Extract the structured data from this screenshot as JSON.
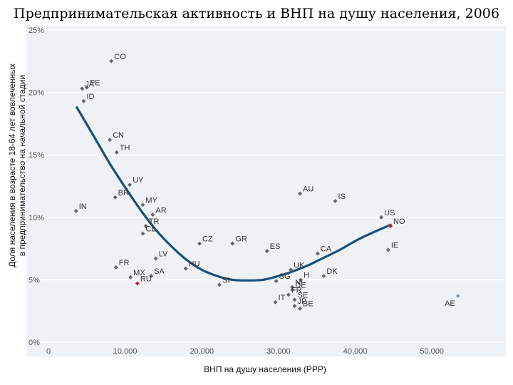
{
  "title": "Предпринимательская активность и ВНП на душу населения, 2006",
  "chart_data": {
    "type": "scatter",
    "xlabel": "ВНП на душу населения (PPP)",
    "ylabel": [
      "Доля населения в возрасте 18-64 лет вовлеченных",
      "в предпринимательство на начальной стадии"
    ],
    "xlim": [
      0,
      55000
    ],
    "ylim": [
      0,
      25
    ],
    "x_ticks": [
      0,
      10000,
      20000,
      30000,
      40000,
      50000
    ],
    "x_tick_labels": [
      "0",
      "10,000",
      "20,000",
      "30,000",
      "40,000",
      "50,000"
    ],
    "y_ticks": [
      0,
      5,
      10,
      15,
      20,
      25
    ],
    "y_tick_labels": [
      "0%",
      "5%",
      "10%",
      "15%",
      "20%",
      "25%"
    ],
    "grid": "horizontal",
    "colors": {
      "plot_bg": "#eef2f5",
      "point": "#666666",
      "highlight": "#cc2222",
      "outlier": "#7aa8c0",
      "trend": "#1a4f7a",
      "grid": "#ffffff"
    },
    "points": [
      {
        "label": "CO",
        "x": 8200,
        "y": 22.5
      },
      {
        "label": "PE",
        "x": 5000,
        "y": 20.4
      },
      {
        "label": "JA",
        "x": 4400,
        "y": 20.3
      },
      {
        "label": "ID",
        "x": 4600,
        "y": 19.3
      },
      {
        "label": "CN",
        "x": 8000,
        "y": 16.2
      },
      {
        "label": "TH",
        "x": 8900,
        "y": 15.2
      },
      {
        "label": "UY",
        "x": 10600,
        "y": 12.6
      },
      {
        "label": "BR",
        "x": 8700,
        "y": 11.6
      },
      {
        "label": "MY",
        "x": 12300,
        "y": 11.0
      },
      {
        "label": "AR",
        "x": 13600,
        "y": 10.2
      },
      {
        "label": "IN",
        "x": 3600,
        "y": 10.5
      },
      {
        "label": "TR",
        "x": 12700,
        "y": 9.3
      },
      {
        "label": "CL",
        "x": 12300,
        "y": 8.7
      },
      {
        "label": "LV",
        "x": 14000,
        "y": 6.7
      },
      {
        "label": "CZ",
        "x": 19700,
        "y": 7.9
      },
      {
        "label": "GR",
        "x": 24000,
        "y": 7.9
      },
      {
        "label": "ES",
        "x": 28500,
        "y": 7.3
      },
      {
        "label": "IS",
        "x": 37400,
        "y": 11.3
      },
      {
        "label": "AU",
        "x": 32800,
        "y": 11.9
      },
      {
        "label": "US",
        "x": 43400,
        "y": 10.0
      },
      {
        "label": "NO",
        "x": 44600,
        "y": 9.3,
        "highlight": true
      },
      {
        "label": "IE",
        "x": 44300,
        "y": 7.4
      },
      {
        "label": "CA",
        "x": 35100,
        "y": 7.1
      },
      {
        "label": "UK",
        "x": 31600,
        "y": 5.8
      },
      {
        "label": "H",
        "x": 32900,
        "y": 5.0
      },
      {
        "label": "DK",
        "x": 35900,
        "y": 5.3
      },
      {
        "label": "HU",
        "x": 17900,
        "y": 5.9
      },
      {
        "label": "FR",
        "x": 8800,
        "y": 6.0
      },
      {
        "label": "MX",
        "x": 10700,
        "y": 5.2
      },
      {
        "label": "SA",
        "x": 13400,
        "y": 5.3
      },
      {
        "label": "RU",
        "x": 11600,
        "y": 4.7,
        "highlight": true
      },
      {
        "label": "SI",
        "x": 22300,
        "y": 4.6
      },
      {
        "label": "SG",
        "x": 29700,
        "y": 4.9
      },
      {
        "label": "NL",
        "x": 31800,
        "y": 4.4
      },
      {
        "label": "FR",
        "x": 31300,
        "y": 3.8
      },
      {
        "label": "DE",
        "x": 31800,
        "y": 4.2
      },
      {
        "label": "SE",
        "x": 32100,
        "y": 3.4
      },
      {
        "label": "IT",
        "x": 29600,
        "y": 3.2
      },
      {
        "label": "JP",
        "x": 32100,
        "y": 2.9
      },
      {
        "label": "BE",
        "x": 32800,
        "y": 2.7
      },
      {
        "label": "AE",
        "x": 53400,
        "y": 3.7,
        "outlier": true
      }
    ],
    "trend": {
      "x": [
        3700,
        6000,
        8000,
        10000,
        12000,
        14000,
        16000,
        18000,
        20000,
        22000,
        24000,
        26000,
        28000,
        30000,
        32000,
        34000,
        36000,
        38000,
        40000,
        42000,
        44600
      ],
      "y": [
        18.8,
        16.4,
        14.3,
        12.4,
        10.6,
        9.0,
        7.7,
        6.6,
        5.8,
        5.3,
        5.0,
        4.95,
        5.0,
        5.3,
        5.7,
        6.2,
        6.8,
        7.4,
        8.1,
        8.7,
        9.4
      ]
    }
  }
}
